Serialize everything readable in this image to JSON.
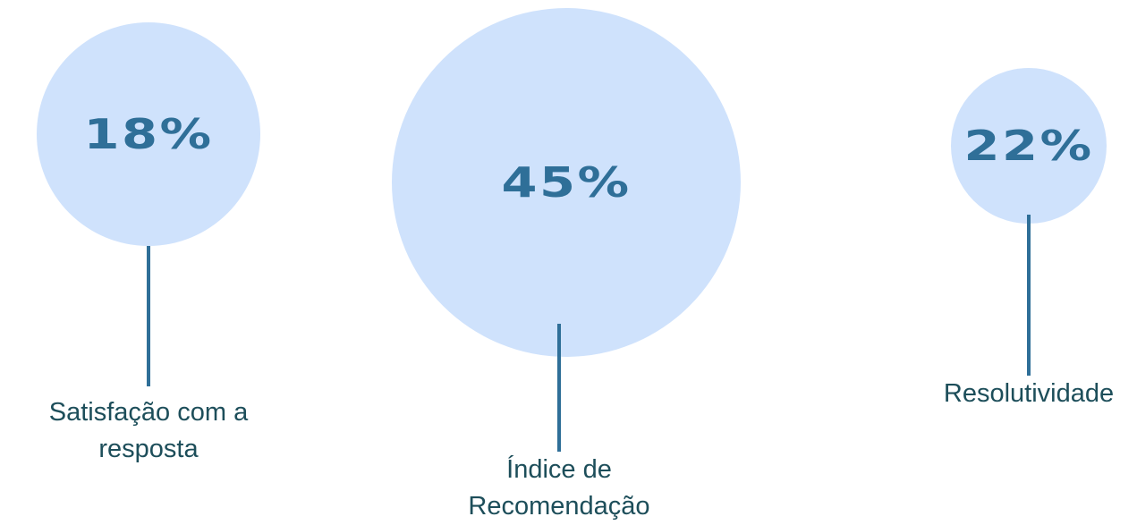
{
  "items": [
    {
      "value": "18%",
      "label": "Satisfação com a resposta"
    },
    {
      "value": "45%",
      "label": "Índice de Recomendação"
    },
    {
      "value": "22%",
      "label": "Resolutividade"
    }
  ]
}
